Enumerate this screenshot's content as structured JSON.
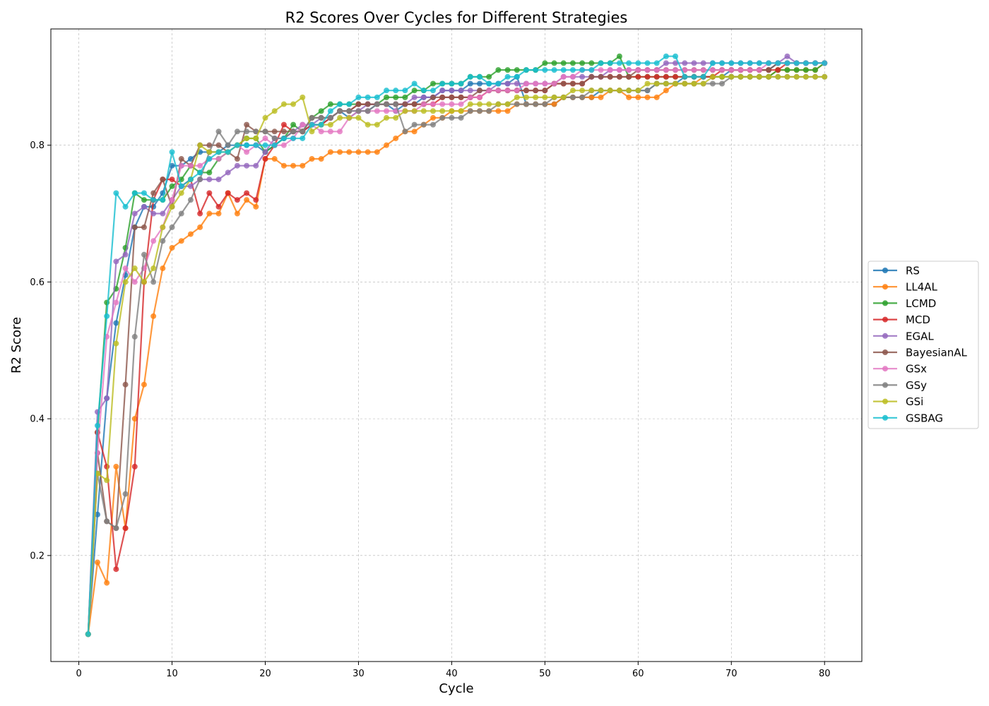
{
  "chart_data": {
    "type": "line",
    "title": "R2 Scores Over Cycles for Different Strategies",
    "xlabel": "Cycle",
    "ylabel": "R2 Score",
    "xlim": [
      -3,
      84
    ],
    "ylim": [
      0.045,
      0.97
    ],
    "xticks": [
      0,
      10,
      20,
      30,
      40,
      50,
      60,
      70,
      80
    ],
    "yticks": [
      0.2,
      0.4,
      0.6,
      0.8
    ],
    "grid": true,
    "legend_position": "right",
    "series": [
      {
        "name": "RS",
        "color": "#1f77b4",
        "values": [
          0.085,
          0.26,
          0.43,
          0.54,
          0.61,
          0.68,
          0.71,
          0.71,
          0.73,
          0.77,
          0.77,
          0.78,
          0.79,
          0.79,
          0.79,
          0.8,
          0.8,
          0.8,
          0.8,
          0.79,
          0.8,
          0.81,
          0.82,
          0.82,
          0.83,
          0.83,
          0.84,
          0.85,
          0.84,
          0.85,
          0.85,
          0.86,
          0.86,
          0.85,
          0.86,
          0.86,
          0.87,
          0.87,
          0.88,
          0.88,
          0.88,
          0.89,
          0.89,
          0.89,
          0.89,
          0.89,
          0.9,
          0.86,
          0.86,
          0.86,
          0.86,
          0.87,
          0.87,
          0.87,
          0.87,
          0.88,
          0.88,
          0.88,
          0.88,
          0.88,
          0.88,
          0.89,
          0.89,
          0.89,
          0.9,
          0.9,
          0.9,
          0.9,
          0.9,
          0.91,
          0.91,
          0.91,
          0.91,
          0.91,
          0.92,
          0.92,
          0.92,
          0.92,
          0.92,
          0.92
        ]
      },
      {
        "name": "LL4AL",
        "color": "#ff7f0e",
        "values": [
          0.085,
          0.19,
          0.16,
          0.33,
          0.24,
          0.4,
          0.45,
          0.55,
          0.62,
          0.65,
          0.66,
          0.67,
          0.68,
          0.7,
          0.7,
          0.73,
          0.7,
          0.72,
          0.71,
          0.78,
          0.78,
          0.77,
          0.77,
          0.77,
          0.78,
          0.78,
          0.79,
          0.79,
          0.79,
          0.79,
          0.79,
          0.79,
          0.8,
          0.81,
          0.82,
          0.82,
          0.83,
          0.84,
          0.84,
          0.85,
          0.85,
          0.85,
          0.85,
          0.85,
          0.85,
          0.85,
          0.86,
          0.86,
          0.86,
          0.86,
          0.86,
          0.87,
          0.87,
          0.87,
          0.87,
          0.87,
          0.88,
          0.88,
          0.87,
          0.87,
          0.87,
          0.87,
          0.88,
          0.89,
          0.89,
          0.89,
          0.9,
          0.9,
          0.9,
          0.9,
          0.9,
          0.9,
          0.9,
          0.9,
          0.91,
          0.91,
          0.91,
          0.91,
          0.91,
          0.92
        ]
      },
      {
        "name": "LCMD",
        "color": "#2ca02c",
        "values": [
          0.085,
          0.38,
          0.57,
          0.59,
          0.65,
          0.73,
          0.72,
          0.72,
          0.72,
          0.74,
          0.75,
          0.77,
          0.76,
          0.76,
          0.78,
          0.79,
          0.8,
          0.81,
          0.81,
          0.79,
          0.8,
          0.81,
          0.83,
          0.82,
          0.84,
          0.85,
          0.86,
          0.86,
          0.86,
          0.86,
          0.86,
          0.86,
          0.87,
          0.87,
          0.87,
          0.88,
          0.88,
          0.89,
          0.89,
          0.89,
          0.89,
          0.9,
          0.9,
          0.9,
          0.91,
          0.91,
          0.91,
          0.91,
          0.91,
          0.92,
          0.92,
          0.92,
          0.92,
          0.92,
          0.92,
          0.92,
          0.92,
          0.93,
          0.9,
          0.9,
          0.9,
          0.9,
          0.9,
          0.9,
          0.9,
          0.9,
          0.9,
          0.9,
          0.9,
          0.9,
          0.9,
          0.9,
          0.9,
          0.9,
          0.91,
          0.91,
          0.91,
          0.91,
          0.91,
          0.92
        ]
      },
      {
        "name": "MCD",
        "color": "#d62728",
        "values": [
          0.085,
          0.38,
          0.33,
          0.18,
          0.24,
          0.33,
          0.6,
          0.72,
          0.75,
          0.75,
          0.74,
          0.75,
          0.7,
          0.73,
          0.71,
          0.73,
          0.72,
          0.73,
          0.72,
          0.78,
          0.8,
          0.83,
          0.82,
          0.82,
          0.83,
          0.83,
          0.84,
          0.85,
          0.85,
          0.86,
          0.86,
          0.86,
          0.86,
          0.86,
          0.86,
          0.86,
          0.86,
          0.86,
          0.87,
          0.87,
          0.87,
          0.87,
          0.87,
          0.88,
          0.88,
          0.88,
          0.88,
          0.88,
          0.88,
          0.88,
          0.89,
          0.89,
          0.89,
          0.89,
          0.9,
          0.9,
          0.9,
          0.9,
          0.9,
          0.9,
          0.9,
          0.9,
          0.9,
          0.9,
          0.9,
          0.9,
          0.9,
          0.9,
          0.91,
          0.91,
          0.91,
          0.91,
          0.91,
          0.91,
          0.91,
          0.92,
          0.92,
          0.92,
          0.92,
          0.92
        ]
      },
      {
        "name": "EGAL",
        "color": "#9467bd",
        "values": [
          0.085,
          0.41,
          0.43,
          0.63,
          0.64,
          0.7,
          0.71,
          0.7,
          0.7,
          0.72,
          0.74,
          0.74,
          0.75,
          0.75,
          0.75,
          0.76,
          0.77,
          0.77,
          0.77,
          0.79,
          0.81,
          0.81,
          0.82,
          0.83,
          0.83,
          0.84,
          0.84,
          0.85,
          0.85,
          0.85,
          0.86,
          0.86,
          0.86,
          0.86,
          0.86,
          0.87,
          0.87,
          0.87,
          0.88,
          0.88,
          0.88,
          0.88,
          0.88,
          0.88,
          0.89,
          0.89,
          0.89,
          0.89,
          0.89,
          0.89,
          0.89,
          0.9,
          0.9,
          0.9,
          0.9,
          0.9,
          0.91,
          0.91,
          0.91,
          0.91,
          0.91,
          0.91,
          0.92,
          0.92,
          0.92,
          0.92,
          0.92,
          0.92,
          0.92,
          0.92,
          0.92,
          0.92,
          0.92,
          0.92,
          0.92,
          0.93,
          0.92,
          0.92,
          0.92,
          0.92
        ]
      },
      {
        "name": "BayesianAL",
        "color": "#8c564b",
        "values": [
          0.085,
          0.35,
          0.25,
          0.24,
          0.45,
          0.68,
          0.68,
          0.73,
          0.75,
          0.71,
          0.78,
          0.77,
          0.8,
          0.8,
          0.8,
          0.79,
          0.78,
          0.83,
          0.82,
          0.82,
          0.82,
          0.82,
          0.82,
          0.82,
          0.84,
          0.84,
          0.84,
          0.85,
          0.85,
          0.86,
          0.86,
          0.86,
          0.86,
          0.86,
          0.86,
          0.86,
          0.86,
          0.87,
          0.87,
          0.87,
          0.87,
          0.87,
          0.88,
          0.88,
          0.88,
          0.88,
          0.88,
          0.88,
          0.88,
          0.88,
          0.89,
          0.89,
          0.89,
          0.89,
          0.9,
          0.9,
          0.9,
          0.9,
          0.9,
          0.91,
          0.91,
          0.91,
          0.91,
          0.91,
          0.91,
          0.91,
          0.91,
          0.91,
          0.91,
          0.91,
          0.91,
          0.91,
          0.91,
          0.91,
          0.92,
          0.92,
          0.92,
          0.92,
          0.92,
          0.92
        ]
      },
      {
        "name": "GSx",
        "color": "#e377c2",
        "values": [
          0.085,
          0.35,
          0.52,
          0.57,
          0.62,
          0.6,
          0.62,
          0.66,
          0.68,
          0.72,
          0.77,
          0.77,
          0.77,
          0.78,
          0.78,
          0.79,
          0.8,
          0.79,
          0.8,
          0.81,
          0.8,
          0.8,
          0.81,
          0.83,
          0.83,
          0.82,
          0.82,
          0.82,
          0.84,
          0.85,
          0.85,
          0.85,
          0.85,
          0.85,
          0.85,
          0.85,
          0.86,
          0.86,
          0.86,
          0.86,
          0.86,
          0.87,
          0.87,
          0.88,
          0.88,
          0.88,
          0.88,
          0.89,
          0.89,
          0.89,
          0.89,
          0.9,
          0.9,
          0.91,
          0.91,
          0.91,
          0.91,
          0.91,
          0.91,
          0.91,
          0.91,
          0.91,
          0.91,
          0.91,
          0.91,
          0.91,
          0.91,
          0.91,
          0.91,
          0.91,
          0.91,
          0.91,
          0.91,
          0.92,
          0.92,
          0.92,
          0.92,
          0.92,
          0.92,
          0.92
        ]
      },
      {
        "name": "GSy",
        "color": "#7f7f7f",
        "values": [
          0.085,
          0.32,
          0.25,
          0.24,
          0.29,
          0.52,
          0.64,
          0.6,
          0.66,
          0.68,
          0.7,
          0.72,
          0.75,
          0.79,
          0.82,
          0.8,
          0.82,
          0.82,
          0.82,
          0.82,
          0.81,
          0.81,
          0.82,
          0.82,
          0.84,
          0.84,
          0.84,
          0.85,
          0.85,
          0.85,
          0.85,
          0.86,
          0.86,
          0.86,
          0.82,
          0.83,
          0.83,
          0.83,
          0.84,
          0.84,
          0.84,
          0.85,
          0.85,
          0.85,
          0.86,
          0.86,
          0.86,
          0.86,
          0.86,
          0.86,
          0.87,
          0.87,
          0.87,
          0.87,
          0.88,
          0.88,
          0.88,
          0.88,
          0.88,
          0.88,
          0.88,
          0.89,
          0.89,
          0.89,
          0.89,
          0.89,
          0.89,
          0.89,
          0.89,
          0.9,
          0.9,
          0.9,
          0.9,
          0.9,
          0.9,
          0.9,
          0.9,
          0.9,
          0.9,
          0.9
        ]
      },
      {
        "name": "GSi",
        "color": "#bcbd22",
        "values": [
          0.085,
          0.32,
          0.31,
          0.51,
          0.6,
          0.62,
          0.6,
          0.62,
          0.68,
          0.71,
          0.73,
          0.75,
          0.8,
          0.79,
          0.79,
          0.79,
          0.8,
          0.81,
          0.81,
          0.84,
          0.85,
          0.86,
          0.86,
          0.87,
          0.82,
          0.83,
          0.83,
          0.84,
          0.84,
          0.84,
          0.83,
          0.83,
          0.84,
          0.84,
          0.85,
          0.85,
          0.85,
          0.85,
          0.85,
          0.85,
          0.85,
          0.86,
          0.86,
          0.86,
          0.86,
          0.86,
          0.87,
          0.87,
          0.87,
          0.87,
          0.87,
          0.87,
          0.88,
          0.88,
          0.88,
          0.88,
          0.88,
          0.88,
          0.88,
          0.88,
          0.89,
          0.89,
          0.89,
          0.89,
          0.89,
          0.89,
          0.89,
          0.9,
          0.9,
          0.9,
          0.9,
          0.9,
          0.9,
          0.9,
          0.9,
          0.9,
          0.9,
          0.9,
          0.9,
          0.9
        ]
      },
      {
        "name": "GSBAG",
        "color": "#17becf",
        "values": [
          0.085,
          0.39,
          0.55,
          0.73,
          0.71,
          0.73,
          0.73,
          0.72,
          0.72,
          0.79,
          0.74,
          0.75,
          0.76,
          0.78,
          0.79,
          0.79,
          0.8,
          0.8,
          0.8,
          0.8,
          0.8,
          0.81,
          0.81,
          0.81,
          0.83,
          0.83,
          0.85,
          0.86,
          0.86,
          0.87,
          0.87,
          0.87,
          0.88,
          0.88,
          0.88,
          0.89,
          0.88,
          0.88,
          0.89,
          0.89,
          0.89,
          0.9,
          0.9,
          0.89,
          0.89,
          0.9,
          0.9,
          0.91,
          0.91,
          0.91,
          0.91,
          0.91,
          0.91,
          0.91,
          0.91,
          0.92,
          0.92,
          0.92,
          0.92,
          0.92,
          0.92,
          0.92,
          0.93,
          0.93,
          0.9,
          0.9,
          0.9,
          0.92,
          0.92,
          0.92,
          0.92,
          0.92,
          0.92,
          0.92,
          0.92,
          0.92,
          0.92,
          0.92,
          0.92,
          0.92
        ]
      }
    ]
  }
}
